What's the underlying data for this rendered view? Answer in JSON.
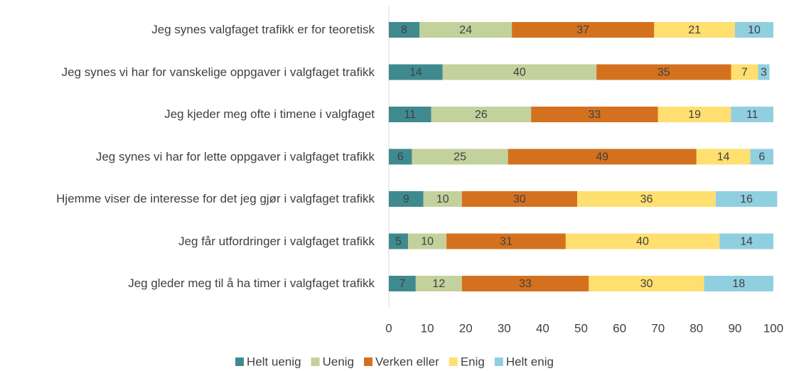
{
  "chart_data": {
    "type": "stacked_barh",
    "categories": [
      "Jeg synes valgfaget trafikk er for teoretisk",
      "Jeg synes vi har for vanskelige oppgaver i valgfaget trafikk",
      "Jeg kjeder meg ofte i timene i valgfaget",
      "Jeg synes vi har for lette oppgaver i valgfaget trafikk",
      "Hjemme viser de interesse for det jeg gjør i valgfaget trafikk",
      "Jeg får utfordringer i valgfaget trafikk",
      "Jeg gleder meg til å ha timer i valgfaget trafikk"
    ],
    "series": [
      {
        "name": "Helt uenig",
        "color": "#3f8a8f",
        "values": [
          8,
          14,
          11,
          6,
          9,
          5,
          7
        ]
      },
      {
        "name": "Uenig",
        "color": "#c3d19c",
        "values": [
          24,
          40,
          26,
          25,
          10,
          10,
          12
        ]
      },
      {
        "name": "Verken eller",
        "color": "#d4711f",
        "values": [
          37,
          35,
          33,
          49,
          30,
          31,
          33
        ]
      },
      {
        "name": "Enig",
        "color": "#fedf6f",
        "values": [
          21,
          7,
          19,
          14,
          36,
          40,
          30
        ]
      },
      {
        "name": "Helt enig",
        "color": "#90cfe0",
        "values": [
          10,
          3,
          11,
          6,
          16,
          14,
          18
        ]
      }
    ],
    "xlim": [
      0,
      100
    ],
    "xticks": [
      0,
      10,
      20,
      30,
      40,
      50,
      60,
      70,
      80,
      90,
      100
    ],
    "grid": false,
    "legend": "bottom"
  }
}
